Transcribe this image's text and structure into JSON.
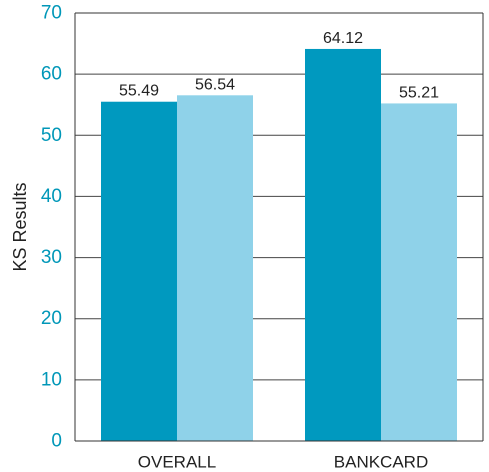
{
  "chart_data": {
    "type": "bar",
    "categories": [
      "OVERALL",
      "BANKCARD"
    ],
    "series": [
      {
        "values": [
          55.49,
          64.12
        ],
        "color": "#0099bf"
      },
      {
        "values": [
          56.54,
          55.21
        ],
        "color": "#8fd2e9"
      }
    ],
    "data_labels": [
      [
        "55.49",
        "64.12"
      ],
      [
        "56.54",
        "55.21"
      ]
    ],
    "ylabel": "KS Results",
    "xlabel": "",
    "title": "",
    "ylim": [
      0,
      70
    ],
    "yticks": [
      0,
      10,
      20,
      30,
      40,
      50,
      60,
      70
    ],
    "grid": true,
    "legend": "none",
    "colors": {
      "tick": "#0097b8",
      "grid": "#444444",
      "text": "#222222"
    }
  }
}
